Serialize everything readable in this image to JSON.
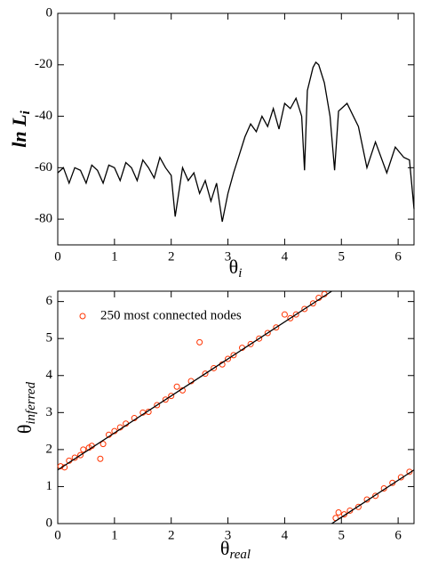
{
  "chart_data": [
    {
      "type": "line",
      "xlabel": {
        "main": "θ",
        "sub": "i"
      },
      "ylabel": {
        "main": "ln L",
        "sub": "i"
      },
      "xlim": [
        0,
        6.28
      ],
      "ylim": [
        -90,
        0
      ],
      "xticks": [
        0,
        1,
        2,
        3,
        4,
        5,
        6
      ],
      "yticks": [
        0,
        -20,
        -40,
        -60,
        -80
      ],
      "color": "#000000",
      "x": [
        0,
        0.1,
        0.2,
        0.3,
        0.4,
        0.5,
        0.6,
        0.7,
        0.8,
        0.9,
        1.0,
        1.1,
        1.2,
        1.3,
        1.4,
        1.5,
        1.6,
        1.7,
        1.8,
        1.9,
        2.0,
        2.07,
        2.2,
        2.3,
        2.4,
        2.5,
        2.6,
        2.7,
        2.8,
        2.9,
        3.0,
        3.1,
        3.2,
        3.3,
        3.4,
        3.5,
        3.6,
        3.7,
        3.8,
        3.9,
        4.0,
        4.1,
        4.2,
        4.3,
        4.35,
        4.4,
        4.5,
        4.55,
        4.6,
        4.7,
        4.8,
        4.88,
        4.95,
        5.1,
        5.3,
        5.45,
        5.6,
        5.8,
        5.95,
        6.1,
        6.2,
        6.28
      ],
      "values": [
        -62,
        -60,
        -66,
        -60,
        -61,
        -66,
        -59,
        -61,
        -66,
        -59,
        -60,
        -65,
        -58,
        -60,
        -65,
        -57,
        -60,
        -64,
        -56,
        -60,
        -63,
        -79,
        -60,
        -65,
        -62,
        -70,
        -65,
        -73,
        -66,
        -81,
        -70,
        -62,
        -55,
        -48,
        -43,
        -46,
        -40,
        -44,
        -37,
        -45,
        -35,
        -37,
        -33,
        -40,
        -61,
        -30,
        -21,
        -19,
        -20,
        -27,
        -40,
        -61,
        -38,
        -35,
        -44,
        -60,
        -50,
        -62,
        -52,
        -56,
        -57,
        -76
      ]
    },
    {
      "type": "scatter",
      "xlabel": {
        "main": "θ",
        "sub": "real"
      },
      "ylabel": {
        "main": "θ",
        "sub": "inferred"
      },
      "xlim": [
        0,
        6.28
      ],
      "ylim": [
        0,
        6.28
      ],
      "xticks": [
        0,
        1,
        2,
        3,
        4,
        5,
        6
      ],
      "yticks": [
        0,
        1,
        2,
        3,
        4,
        5,
        6
      ],
      "legend": "top-left",
      "series": [
        {
          "name": "250 most connected nodes",
          "color": "#ff3300",
          "x": [
            0.05,
            0.12,
            0.2,
            0.3,
            0.4,
            0.45,
            0.55,
            0.6,
            0.75,
            0.8,
            0.9,
            1.0,
            1.1,
            1.2,
            1.35,
            1.5,
            1.6,
            1.75,
            1.9,
            2.0,
            2.1,
            2.2,
            2.35,
            2.5,
            2.6,
            2.75,
            2.9,
            3.0,
            3.1,
            3.25,
            3.4,
            3.55,
            3.7,
            3.85,
            4.0,
            4.1,
            4.2,
            4.35,
            4.5,
            4.6,
            4.7,
            4.9,
            4.95,
            5.05,
            5.15,
            5.3,
            5.45,
            5.6,
            5.75,
            5.9,
            6.05,
            6.2
          ],
          "values": [
            1.55,
            1.52,
            1.7,
            1.78,
            1.85,
            2.0,
            2.05,
            2.1,
            1.75,
            2.15,
            2.4,
            2.5,
            2.6,
            2.7,
            2.85,
            3.0,
            3.02,
            3.2,
            3.35,
            3.45,
            3.7,
            3.6,
            3.85,
            4.9,
            4.05,
            4.2,
            4.3,
            4.45,
            4.55,
            4.75,
            4.85,
            5.0,
            5.15,
            5.3,
            5.65,
            5.55,
            5.65,
            5.8,
            5.95,
            6.1,
            6.2,
            0.15,
            0.3,
            0.25,
            0.35,
            0.45,
            0.65,
            0.75,
            0.95,
            1.1,
            1.25,
            1.4
          ]
        }
      ],
      "fit": {
        "color": "#000000",
        "x": [
          0,
          4.83,
          4.83,
          4.83,
          6.28
        ],
        "values": [
          1.45,
          6.28,
          null,
          0,
          1.45
        ]
      }
    }
  ]
}
